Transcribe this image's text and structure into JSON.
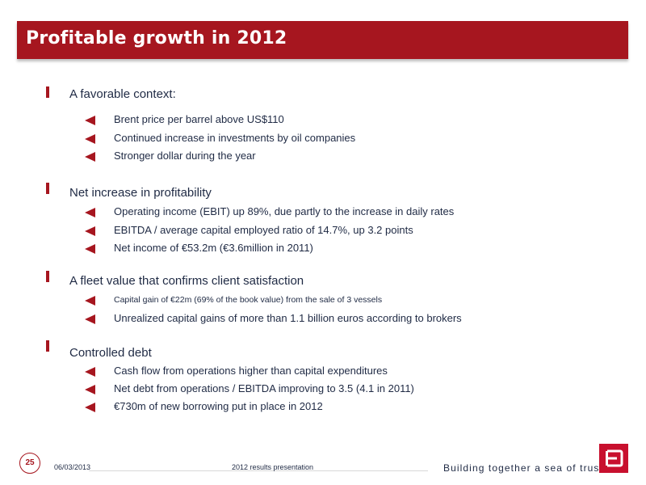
{
  "header": {
    "title": "Profitable growth in 2012"
  },
  "sections": [
    {
      "heading": "A favorable context:",
      "items": [
        "Brent price per barrel above US$110",
        "Continued increase in investments by oil companies",
        "Stronger dollar during the year"
      ]
    },
    {
      "heading": "Net increase in profitability",
      "items": [
        "Operating income (EBIT) up 89%, due partly to the increase in daily rates",
        "EBITDA / average capital employed ratio of 14.7%, up 3.2 points",
        "Net income of €53.2m (€3.6million in 2011)"
      ]
    },
    {
      "heading": "A fleet value that confirms client satisfaction",
      "items": [
        "Capital gain of €22m (69% of the book value) from the sale of 3 vessels",
        "Unrealized capital gains of  more than 1.1 billion euros according to brokers"
      ]
    },
    {
      "heading": "Controlled debt",
      "items": [
        "Cash flow from operations higher than capital expenditures",
        "Net debt from operations / EBITDA improving to 3.5 (4.1 in 2011)",
        "€730m of new borrowing put in place in 2012"
      ]
    }
  ],
  "footer": {
    "page_number": "25",
    "date": "06/03/2013",
    "center_text": "2012 results presentation",
    "tagline": "Building together a sea of trust",
    "logo_icon": "bourbon-logo-icon"
  },
  "colors": {
    "accent": "#a6161f",
    "text": "#1f2a44",
    "logo": "#c8102e"
  }
}
